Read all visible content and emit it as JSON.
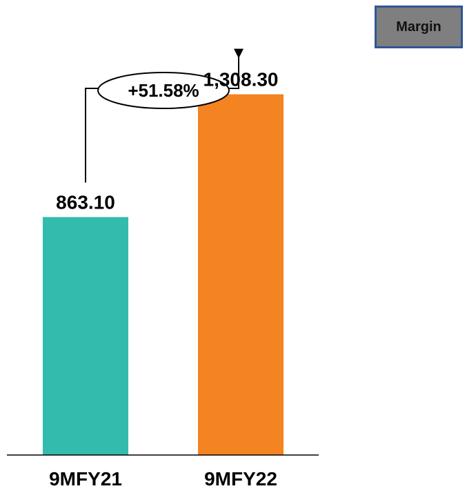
{
  "badge": {
    "label": "Margin"
  },
  "chart_data": {
    "type": "bar",
    "categories": [
      "9MFY21",
      "9MFY22"
    ],
    "values": [
      863.1,
      1308.3
    ],
    "value_labels": [
      "863.10",
      "1,308.30"
    ],
    "bar_colors": [
      "#33BBAD",
      "#F48321"
    ],
    "growth_label": "+51.58%",
    "title": "",
    "xlabel": "",
    "ylabel": "",
    "ylim": [
      0,
      1450
    ]
  }
}
